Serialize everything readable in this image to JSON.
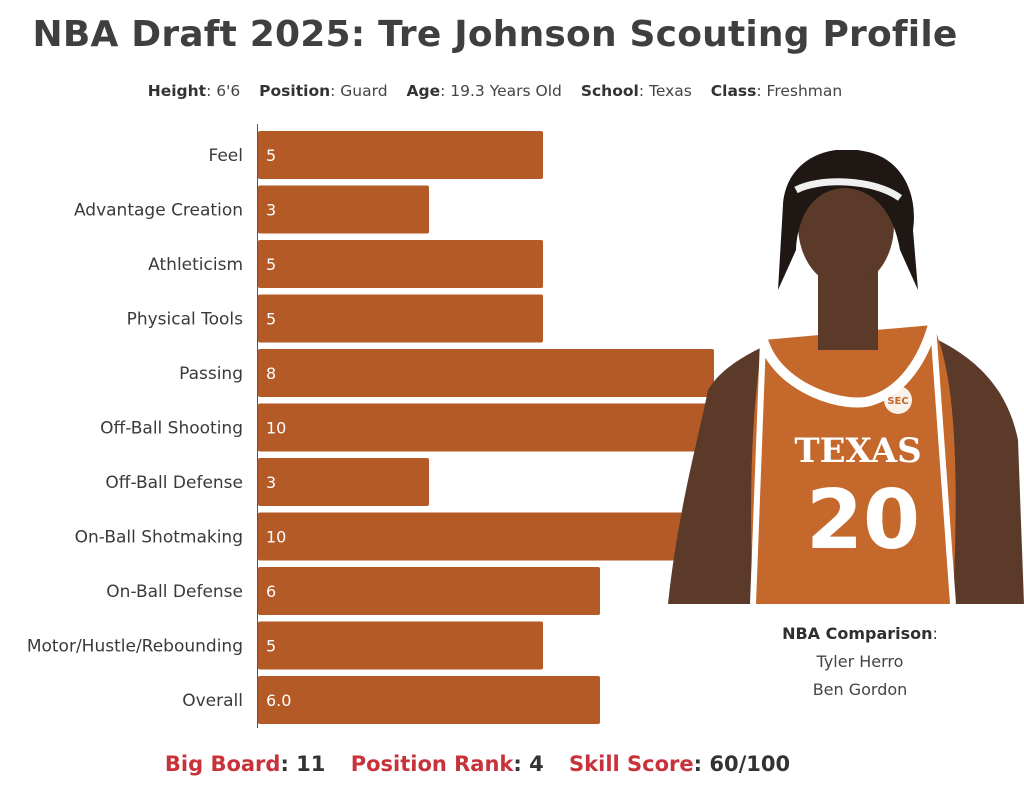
{
  "header": {
    "title": "NBA Draft 2025: Tre Johnson Scouting Profile",
    "profile": [
      {
        "label": "Height",
        "value": "6'6"
      },
      {
        "label": "Position",
        "value": "Guard"
      },
      {
        "label": "Age",
        "value": "19.3 Years Old"
      },
      {
        "label": "School",
        "value": "Texas"
      },
      {
        "label": "Class",
        "value": "Freshman"
      }
    ]
  },
  "chart_data": {
    "type": "bar",
    "orientation": "horizontal",
    "categories": [
      "Feel",
      "Advantage Creation",
      "Athleticism",
      "Physical Tools",
      "Passing",
      "Off-Ball Shooting",
      "Off-Ball Defense",
      "On-Ball Shotmaking",
      "On-Ball Defense",
      "Motor/Hustle/Rebounding",
      "Overall"
    ],
    "values": [
      5,
      3,
      5,
      5,
      8,
      10,
      3,
      10,
      6,
      5,
      6.0
    ],
    "value_labels": [
      "5",
      "3",
      "5",
      "5",
      "8",
      "10",
      "3",
      "10",
      "6",
      "5",
      "6.0"
    ],
    "xlim": [
      0,
      10
    ],
    "bar_color": "#b35a26",
    "grid": false
  },
  "player_photo": {
    "icon": "player-photo",
    "jersey_text": "TEXAS",
    "jersey_number": "20",
    "badge_text": "SEC",
    "jersey_color": "#c4682c",
    "skin_color": "#5b3a2a"
  },
  "comparison": {
    "heading": "NBA Comparison",
    "suffix": ":",
    "players": [
      "Tyler Herro",
      "Ben Gordon"
    ]
  },
  "footer": {
    "items": [
      {
        "label": "Big Board",
        "value": ": 11"
      },
      {
        "label": "Position Rank",
        "value": ": 4"
      },
      {
        "label": "Skill Score",
        "value": ": 60/100"
      }
    ],
    "accent_color": "#c8333b"
  }
}
